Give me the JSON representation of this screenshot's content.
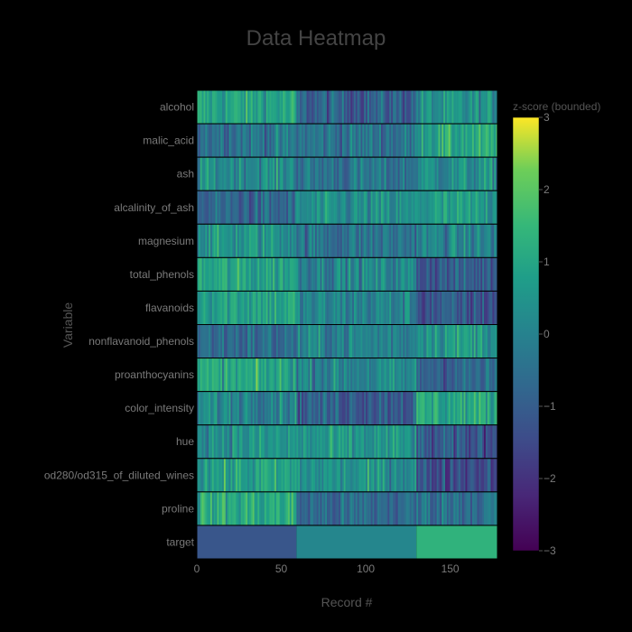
{
  "chart_data": {
    "type": "heatmap",
    "title": "Data Heatmap",
    "xlabel": "Record #",
    "ylabel": "Variable",
    "xlim": [
      0,
      178
    ],
    "x_ticks": [
      0,
      50,
      100,
      150
    ],
    "variables": [
      "alcohol",
      "malic_acid",
      "ash",
      "alcalinity_of_ash",
      "magnesium",
      "total_phenols",
      "flavanoids",
      "nonflavanoid_phenols",
      "proanthocyanins",
      "color_intensity",
      "hue",
      "od280/od315_of_diluted_wines",
      "proline",
      "target"
    ],
    "class_segments": [
      {
        "start": 0,
        "end": 59,
        "z": -1.2
      },
      {
        "start": 59,
        "end": 130,
        "z": 0.1
      },
      {
        "start": 130,
        "end": 178,
        "z": 1.35
      }
    ],
    "variable_class_mean_z": [
      [
        0.9,
        -0.9,
        0.3
      ],
      [
        -0.3,
        -0.4,
        1.0
      ],
      [
        0.3,
        -0.4,
        0.3
      ],
      [
        -0.8,
        0.2,
        0.6
      ],
      [
        0.5,
        -0.4,
        0.0
      ],
      [
        0.9,
        0.1,
        -1.0
      ],
      [
        0.95,
        0.0,
        -1.2
      ],
      [
        -0.6,
        0.0,
        0.7
      ],
      [
        0.9,
        0.1,
        -0.75
      ],
      [
        0.2,
        -0.9,
        1.0
      ],
      [
        0.45,
        0.45,
        -1.2
      ],
      [
        0.8,
        0.4,
        -1.3
      ],
      [
        1.1,
        -0.7,
        -0.4
      ]
    ],
    "colorscale": "viridis",
    "colorbar": {
      "title": "z-score (bounded)",
      "range": [
        -3,
        3
      ],
      "ticks": [
        3,
        2,
        1,
        0,
        -1,
        -2,
        -3
      ],
      "tick_labels": [
        "3",
        "2",
        "1",
        "0",
        "−1",
        "−2",
        "−3"
      ]
    },
    "colors": {
      "background": "#000000",
      "title": "#444444",
      "text": "#555555",
      "tick_text": "#7a7a7a"
    }
  }
}
